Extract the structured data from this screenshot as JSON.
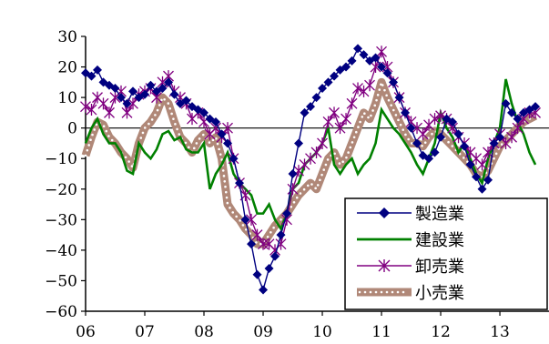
{
  "page_title": "",
  "chart_data": {
    "type": "line",
    "title": "",
    "xlabel": "",
    "ylabel": "",
    "x_ticks": [
      "06",
      "07",
      "08",
      "09",
      "10",
      "11",
      "12",
      "13"
    ],
    "x_range": [
      2006.0,
      2013.83
    ],
    "ylim": [
      -60,
      30
    ],
    "y_ticks": [
      30,
      20,
      10,
      0,
      -10,
      -20,
      -30,
      -40,
      -50,
      -60
    ],
    "y_tick_colors": {
      "nonnegative": "#000000",
      "negative": "#ff0000"
    },
    "zero_line": true,
    "grid": false,
    "legend": {
      "position": "bottom-right"
    },
    "series": [
      {
        "name": "製造業",
        "color": "#000080",
        "marker": "diamond",
        "style": "line-marker",
        "points": [
          [
            2006.0,
            18
          ],
          [
            2006.1,
            17
          ],
          [
            2006.2,
            19
          ],
          [
            2006.3,
            15
          ],
          [
            2006.4,
            14
          ],
          [
            2006.5,
            13
          ],
          [
            2006.6,
            10
          ],
          [
            2006.7,
            8
          ],
          [
            2006.8,
            12
          ],
          [
            2006.9,
            10
          ],
          [
            2007.0,
            11
          ],
          [
            2007.1,
            14
          ],
          [
            2007.2,
            12
          ],
          [
            2007.3,
            13
          ],
          [
            2007.4,
            15
          ],
          [
            2007.5,
            11
          ],
          [
            2007.6,
            8
          ],
          [
            2007.7,
            9
          ],
          [
            2007.8,
            7
          ],
          [
            2007.9,
            6
          ],
          [
            2008.0,
            5
          ],
          [
            2008.1,
            3
          ],
          [
            2008.2,
            2
          ],
          [
            2008.3,
            -2
          ],
          [
            2008.4,
            -5
          ],
          [
            2008.5,
            -10
          ],
          [
            2008.6,
            -18
          ],
          [
            2008.7,
            -30
          ],
          [
            2008.8,
            -38
          ],
          [
            2008.9,
            -48
          ],
          [
            2009.0,
            -53
          ],
          [
            2009.1,
            -46
          ],
          [
            2009.2,
            -42
          ],
          [
            2009.3,
            -35
          ],
          [
            2009.4,
            -28
          ],
          [
            2009.5,
            -15
          ],
          [
            2009.6,
            -5
          ],
          [
            2009.7,
            5
          ],
          [
            2009.8,
            7
          ],
          [
            2009.9,
            10
          ],
          [
            2010.0,
            13
          ],
          [
            2010.1,
            15
          ],
          [
            2010.2,
            17
          ],
          [
            2010.3,
            19
          ],
          [
            2010.4,
            20
          ],
          [
            2010.5,
            22
          ],
          [
            2010.6,
            26
          ],
          [
            2010.7,
            24
          ],
          [
            2010.8,
            22
          ],
          [
            2010.9,
            23
          ],
          [
            2011.0,
            20
          ],
          [
            2011.1,
            18
          ],
          [
            2011.2,
            15
          ],
          [
            2011.3,
            10
          ],
          [
            2011.4,
            5
          ],
          [
            2011.5,
            0
          ],
          [
            2011.6,
            -5
          ],
          [
            2011.7,
            -9
          ],
          [
            2011.8,
            -10
          ],
          [
            2011.9,
            -8
          ],
          [
            2012.0,
            -3
          ],
          [
            2012.1,
            3
          ],
          [
            2012.2,
            2
          ],
          [
            2012.3,
            -2
          ],
          [
            2012.4,
            -6
          ],
          [
            2012.5,
            -12
          ],
          [
            2012.6,
            -16
          ],
          [
            2012.7,
            -20
          ],
          [
            2012.8,
            -17
          ],
          [
            2012.9,
            -5
          ],
          [
            2013.0,
            -3
          ],
          [
            2013.1,
            8
          ],
          [
            2013.2,
            5
          ],
          [
            2013.3,
            3
          ],
          [
            2013.4,
            5
          ],
          [
            2013.5,
            6
          ],
          [
            2013.6,
            7
          ]
        ]
      },
      {
        "name": "建設業",
        "color": "#008000",
        "marker": "none",
        "style": "line",
        "points": [
          [
            2006.0,
            -5
          ],
          [
            2006.1,
            0
          ],
          [
            2006.2,
            3
          ],
          [
            2006.3,
            -2
          ],
          [
            2006.4,
            -5
          ],
          [
            2006.5,
            -5
          ],
          [
            2006.6,
            -8
          ],
          [
            2006.7,
            -14
          ],
          [
            2006.8,
            -15
          ],
          [
            2006.9,
            -5
          ],
          [
            2007.0,
            -8
          ],
          [
            2007.1,
            -10
          ],
          [
            2007.2,
            -7
          ],
          [
            2007.3,
            -2
          ],
          [
            2007.4,
            -1
          ],
          [
            2007.5,
            -4
          ],
          [
            2007.6,
            -3
          ],
          [
            2007.7,
            -7
          ],
          [
            2007.8,
            -8
          ],
          [
            2007.9,
            -8
          ],
          [
            2008.0,
            -5
          ],
          [
            2008.1,
            -20
          ],
          [
            2008.2,
            -15
          ],
          [
            2008.3,
            -12
          ],
          [
            2008.4,
            -8
          ],
          [
            2008.5,
            -15
          ],
          [
            2008.6,
            -18
          ],
          [
            2008.7,
            -20
          ],
          [
            2008.8,
            -22
          ],
          [
            2008.9,
            -28
          ],
          [
            2009.0,
            -28
          ],
          [
            2009.1,
            -25
          ],
          [
            2009.2,
            -30
          ],
          [
            2009.3,
            -33
          ],
          [
            2009.4,
            -28
          ],
          [
            2009.5,
            -20
          ],
          [
            2009.6,
            -18
          ],
          [
            2009.7,
            -12
          ],
          [
            2009.8,
            -10
          ],
          [
            2009.9,
            -8
          ],
          [
            2010.0,
            -5
          ],
          [
            2010.1,
            0
          ],
          [
            2010.2,
            -12
          ],
          [
            2010.3,
            -15
          ],
          [
            2010.4,
            -12
          ],
          [
            2010.5,
            -10
          ],
          [
            2010.6,
            -15
          ],
          [
            2010.7,
            -12
          ],
          [
            2010.8,
            -10
          ],
          [
            2010.9,
            -5
          ],
          [
            2011.0,
            6
          ],
          [
            2011.1,
            3
          ],
          [
            2011.2,
            0
          ],
          [
            2011.3,
            -2
          ],
          [
            2011.4,
            -5
          ],
          [
            2011.5,
            -8
          ],
          [
            2011.6,
            -12
          ],
          [
            2011.7,
            -15
          ],
          [
            2011.8,
            -10
          ],
          [
            2011.9,
            -5
          ],
          [
            2012.0,
            5
          ],
          [
            2012.1,
            0
          ],
          [
            2012.2,
            -3
          ],
          [
            2012.3,
            -8
          ],
          [
            2012.4,
            -5
          ],
          [
            2012.5,
            -10
          ],
          [
            2012.6,
            -15
          ],
          [
            2012.7,
            -18
          ],
          [
            2012.8,
            -10
          ],
          [
            2012.9,
            -5
          ],
          [
            2013.0,
            0
          ],
          [
            2013.1,
            16
          ],
          [
            2013.2,
            8
          ],
          [
            2013.3,
            2
          ],
          [
            2013.4,
            -2
          ],
          [
            2013.5,
            -8
          ],
          [
            2013.6,
            -12
          ]
        ]
      },
      {
        "name": "卸売業",
        "color": "#800080",
        "marker": "asterisk",
        "style": "line-marker",
        "points": [
          [
            2006.0,
            7
          ],
          [
            2006.1,
            6
          ],
          [
            2006.2,
            10
          ],
          [
            2006.3,
            8
          ],
          [
            2006.4,
            5
          ],
          [
            2006.5,
            10
          ],
          [
            2006.6,
            12
          ],
          [
            2006.7,
            5
          ],
          [
            2006.8,
            8
          ],
          [
            2006.9,
            11
          ],
          [
            2007.0,
            12
          ],
          [
            2007.1,
            13
          ],
          [
            2007.2,
            10
          ],
          [
            2007.3,
            15
          ],
          [
            2007.4,
            17
          ],
          [
            2007.5,
            12
          ],
          [
            2007.6,
            10
          ],
          [
            2007.7,
            8
          ],
          [
            2007.8,
            3
          ],
          [
            2007.9,
            5
          ],
          [
            2008.0,
            2
          ],
          [
            2008.1,
            -2
          ],
          [
            2008.2,
            0
          ],
          [
            2008.3,
            -3
          ],
          [
            2008.4,
            0
          ],
          [
            2008.5,
            -10
          ],
          [
            2008.6,
            -18
          ],
          [
            2008.7,
            -22
          ],
          [
            2008.8,
            -30
          ],
          [
            2008.9,
            -35
          ],
          [
            2009.0,
            -38
          ],
          [
            2009.1,
            -38
          ],
          [
            2009.2,
            -40
          ],
          [
            2009.3,
            -38
          ],
          [
            2009.4,
            -30
          ],
          [
            2009.5,
            -20
          ],
          [
            2009.6,
            -14
          ],
          [
            2009.7,
            -12
          ],
          [
            2009.8,
            -10
          ],
          [
            2009.9,
            -8
          ],
          [
            2010.0,
            -5
          ],
          [
            2010.1,
            2
          ],
          [
            2010.2,
            5
          ],
          [
            2010.3,
            0
          ],
          [
            2010.4,
            3
          ],
          [
            2010.5,
            8
          ],
          [
            2010.6,
            13
          ],
          [
            2010.7,
            12
          ],
          [
            2010.8,
            14
          ],
          [
            2010.9,
            20
          ],
          [
            2011.0,
            25
          ],
          [
            2011.1,
            20
          ],
          [
            2011.2,
            15
          ],
          [
            2011.3,
            10
          ],
          [
            2011.4,
            5
          ],
          [
            2011.5,
            2
          ],
          [
            2011.6,
            0
          ],
          [
            2011.7,
            -2
          ],
          [
            2011.8,
            1
          ],
          [
            2011.9,
            3
          ],
          [
            2012.0,
            4
          ],
          [
            2012.1,
            3
          ],
          [
            2012.2,
            0
          ],
          [
            2012.3,
            -3
          ],
          [
            2012.4,
            -5
          ],
          [
            2012.5,
            -8
          ],
          [
            2012.6,
            -10
          ],
          [
            2012.7,
            -12
          ],
          [
            2012.8,
            -8
          ],
          [
            2012.9,
            -5
          ],
          [
            2013.0,
            -2
          ],
          [
            2013.1,
            -5
          ],
          [
            2013.2,
            -3
          ],
          [
            2013.3,
            0
          ],
          [
            2013.4,
            3
          ],
          [
            2013.5,
            5
          ],
          [
            2013.6,
            5
          ]
        ]
      },
      {
        "name": "小売業",
        "color": "#b08878",
        "marker": "none",
        "style": "thick-dotted",
        "points": [
          [
            2006.0,
            -9
          ],
          [
            2006.1,
            -3
          ],
          [
            2006.2,
            2
          ],
          [
            2006.3,
            1
          ],
          [
            2006.4,
            -3
          ],
          [
            2006.5,
            -5
          ],
          [
            2006.6,
            -8
          ],
          [
            2006.7,
            -10
          ],
          [
            2006.8,
            -13
          ],
          [
            2006.9,
            -5
          ],
          [
            2007.0,
            0
          ],
          [
            2007.1,
            2
          ],
          [
            2007.2,
            5
          ],
          [
            2007.3,
            10
          ],
          [
            2007.4,
            8
          ],
          [
            2007.5,
            2
          ],
          [
            2007.6,
            -3
          ],
          [
            2007.7,
            -5
          ],
          [
            2007.8,
            -8
          ],
          [
            2007.9,
            -4
          ],
          [
            2008.0,
            -2
          ],
          [
            2008.1,
            -5
          ],
          [
            2008.2,
            -3
          ],
          [
            2008.3,
            -10
          ],
          [
            2008.4,
            -25
          ],
          [
            2008.5,
            -28
          ],
          [
            2008.6,
            -30
          ],
          [
            2008.7,
            -33
          ],
          [
            2008.8,
            -35
          ],
          [
            2008.9,
            -38
          ],
          [
            2009.0,
            -38
          ],
          [
            2009.1,
            -35
          ],
          [
            2009.2,
            -32
          ],
          [
            2009.3,
            -30
          ],
          [
            2009.4,
            -28
          ],
          [
            2009.5,
            -25
          ],
          [
            2009.6,
            -22
          ],
          [
            2009.7,
            -20
          ],
          [
            2009.8,
            -18
          ],
          [
            2009.9,
            -20
          ],
          [
            2010.0,
            -15
          ],
          [
            2010.1,
            -10
          ],
          [
            2010.2,
            -8
          ],
          [
            2010.3,
            -12
          ],
          [
            2010.4,
            -10
          ],
          [
            2010.5,
            -5
          ],
          [
            2010.6,
            0
          ],
          [
            2010.7,
            5
          ],
          [
            2010.8,
            3
          ],
          [
            2010.9,
            8
          ],
          [
            2011.0,
            15
          ],
          [
            2011.1,
            10
          ],
          [
            2011.2,
            6
          ],
          [
            2011.3,
            2
          ],
          [
            2011.4,
            -2
          ],
          [
            2011.5,
            -5
          ],
          [
            2011.6,
            -5
          ],
          [
            2011.7,
            -6
          ],
          [
            2011.8,
            -3
          ],
          [
            2011.9,
            -1
          ],
          [
            2012.0,
            -2
          ],
          [
            2012.1,
            -4
          ],
          [
            2012.2,
            -6
          ],
          [
            2012.3,
            -8
          ],
          [
            2012.4,
            -10
          ],
          [
            2012.5,
            -12
          ],
          [
            2012.6,
            -15
          ],
          [
            2012.7,
            -16
          ],
          [
            2012.8,
            -14
          ],
          [
            2012.9,
            -10
          ],
          [
            2013.0,
            -6
          ],
          [
            2013.1,
            -4
          ],
          [
            2013.2,
            -2
          ],
          [
            2013.3,
            0
          ],
          [
            2013.4,
            2
          ],
          [
            2013.5,
            3
          ],
          [
            2013.6,
            4
          ]
        ]
      }
    ]
  }
}
